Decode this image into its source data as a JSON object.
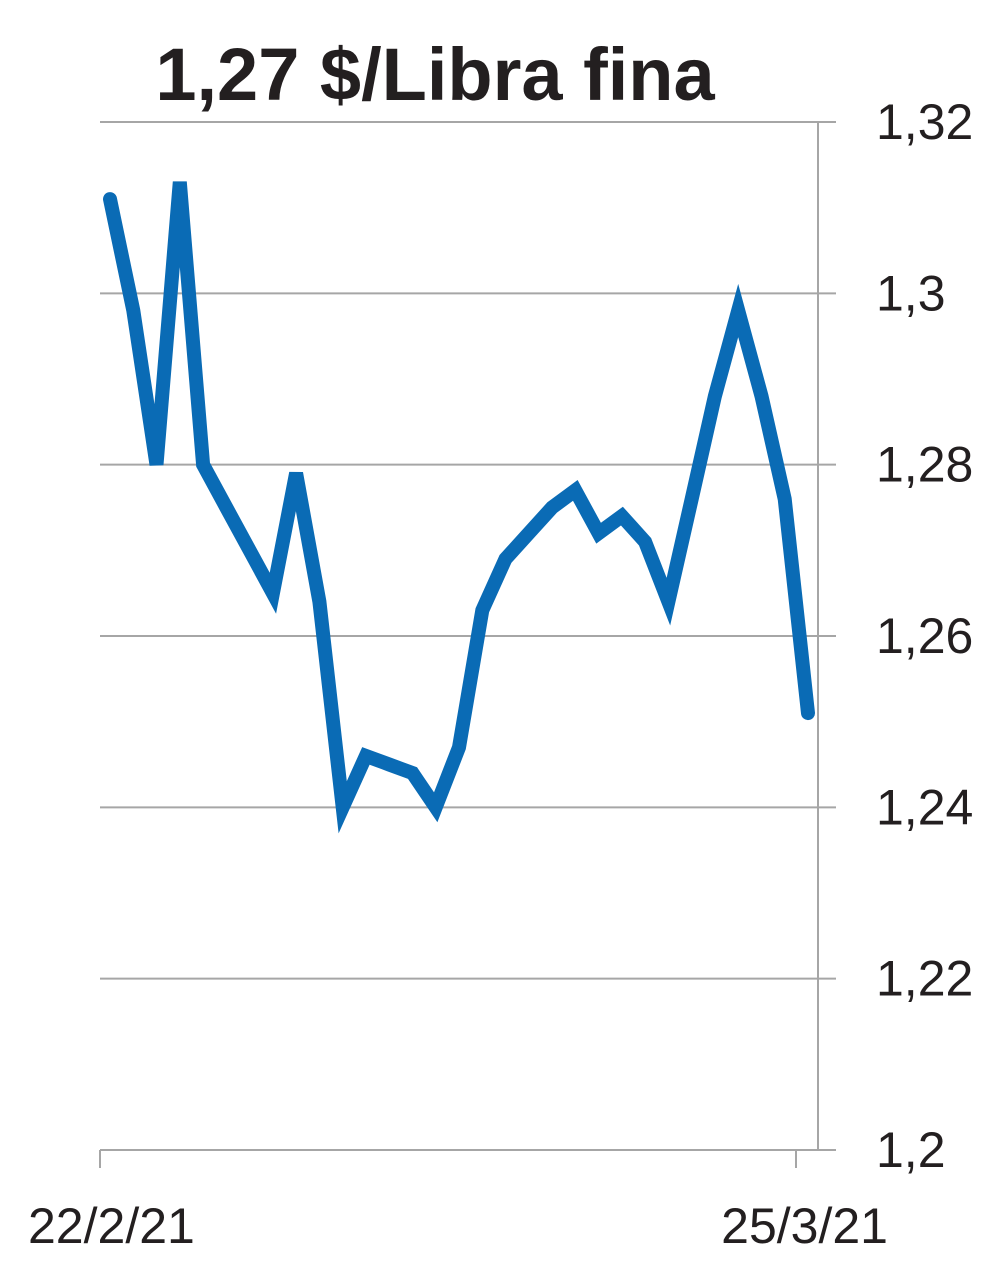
{
  "chart_data": {
    "type": "line",
    "title": "1,27 $/Libra fina",
    "xlabel": "",
    "ylabel": "",
    "ylim": [
      1.2,
      1.32
    ],
    "yticks": [
      1.32,
      1.3,
      1.28,
      1.26,
      1.24,
      1.22,
      1.2
    ],
    "ytick_labels": [
      "1,32",
      "1,3",
      "1,28",
      "1,26",
      "1,24",
      "1,22",
      "1,2"
    ],
    "xtick_labels": [
      "22/2/21",
      "25/3/21"
    ],
    "grid": true,
    "series_color": "#0a6bb5",
    "values": [
      1.311,
      1.298,
      1.28,
      1.313,
      1.28,
      1.275,
      1.27,
      1.265,
      1.279,
      1.264,
      1.24,
      1.246,
      1.245,
      1.244,
      1.24,
      1.247,
      1.263,
      1.269,
      1.272,
      1.275,
      1.277,
      1.272,
      1.274,
      1.271,
      1.264,
      1.276,
      1.288,
      1.298,
      1.288,
      1.276,
      1.251
    ]
  }
}
